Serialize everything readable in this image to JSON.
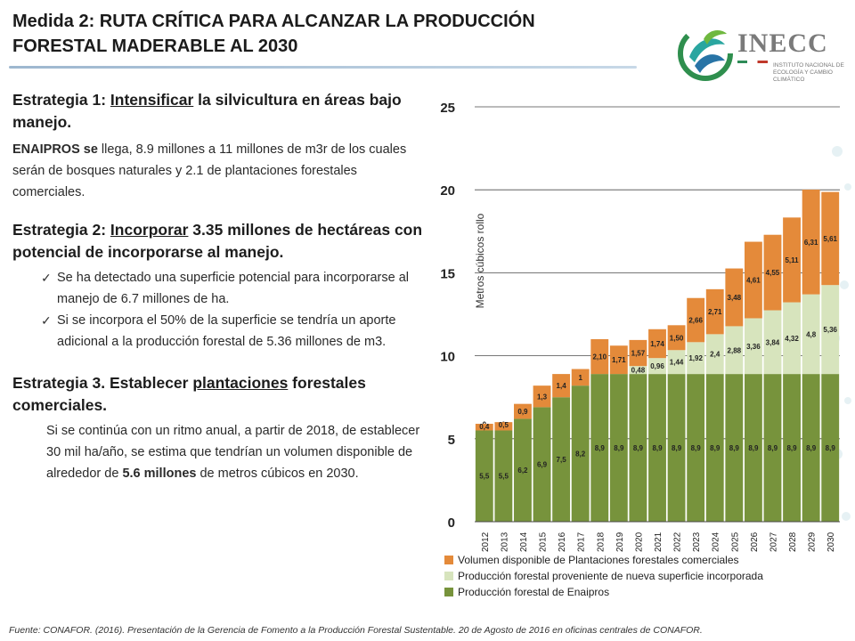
{
  "header": {
    "title_line1": "Medida 2: RUTA CRÍTICA PARA ALCANZAR LA PRODUCCIÓN",
    "title_line2": "FORESTAL MADERABLE AL 2030"
  },
  "logo": {
    "name": "INECC",
    "subtitle": "Instituto Nacional de Ecología y Cambio Climático",
    "colors": {
      "green": "#2f8f4e",
      "teal": "#2aa6a0",
      "blue": "#2874a6",
      "grey": "#7a7a7a"
    }
  },
  "strategies": {
    "s1_pre": "Estrategia 1: ",
    "s1_u": "Intensificar",
    "s1_post": " la silvicultura en áreas bajo manejo.",
    "s1_body_bold": "ENAIPROS se",
    "s1_body": " llega, 8.9 millones a 11 millones de m3r de los cuales serán de bosques naturales y 2.1 de plantaciones forestales comerciales.",
    "s2_pre": "Estrategia 2: ",
    "s2_u": "Incorporar",
    "s2_post": " 3.35 millones de hectáreas con potencial de incorporarse al manejo.",
    "s2_check1": "Se ha detectado una superficie potencial para incorporarse al manejo de 6.7 millones de ha.",
    "s2_check2": "Si se incorpora el 50% de la superficie se tendría un aporte adicional a la producción forestal de 5.36 millones de m3.",
    "s3_pre": "Estrategia 3. Establecer ",
    "s3_u": "plantaciones",
    "s3_post": " forestales comerciales.",
    "s3_body_pre": "Si se continúa con un ritmo anual, a partir de 2018, de establecer 30 mil ha/año, se estima que tendrían un volumen disponible de alrededor de ",
    "s3_body_bold": "5.6 millones",
    "s3_body_post": " de metros cúbicos en 2030."
  },
  "footer": {
    "source": "Fuente: CONAFOR. (2016). Presentación de la Gerencia de Fomento a la Producción Forestal Sustentable. 20 de Agosto de 2016 en oficinas centrales de CONAFOR."
  },
  "chart_data": {
    "type": "bar",
    "stacked": true,
    "ylabel": "Metros cúbicos rollo",
    "ylim": [
      0,
      25
    ],
    "yticks": [
      "0",
      "5",
      "10",
      "15",
      "20",
      "25"
    ],
    "grid": true,
    "legend_position": "bottom",
    "categories": [
      "2012",
      "2013",
      "2014",
      "2015",
      "2016",
      "2017",
      "2018",
      "2019",
      "2020",
      "2021",
      "2022",
      "2023",
      "2024",
      "2025",
      "2026",
      "2027",
      "2028",
      "2029",
      "2030"
    ],
    "series": [
      {
        "name": "Producción forestal de Enaipros",
        "color": "#77933c",
        "values": [
          5.5,
          5.5,
          6.2,
          6.9,
          7.5,
          8.2,
          8.9,
          8.9,
          8.9,
          8.9,
          8.9,
          8.9,
          8.9,
          8.9,
          8.9,
          8.9,
          8.9,
          8.9,
          8.9
        ],
        "labels": [
          "5,5",
          "5,5",
          "6,2",
          "6,9",
          "7,5",
          "8,2",
          "8,9",
          "8,9",
          "8,9",
          "8,9",
          "8,9",
          "8,9",
          "8,9",
          "8,9",
          "8,9",
          "8,9",
          "8,9",
          "8,9",
          "8,9"
        ]
      },
      {
        "name": "Producción forestal proveniente de nueva superficie incorporada",
        "color": "#d7e4bd",
        "values": [
          0,
          0,
          0,
          0,
          0,
          0,
          0,
          0,
          0.48,
          0.96,
          1.44,
          1.92,
          2.4,
          2.88,
          3.36,
          3.84,
          4.32,
          4.8,
          5.36
        ],
        "labels": [
          "0",
          "0",
          "0",
          "0",
          "0",
          "0",
          "0",
          "0",
          "0,48",
          "0,96",
          "1,44",
          "1,92",
          "2,4",
          "2,88",
          "3,36",
          "3,84",
          "4,32",
          "4,8",
          "5,36"
        ]
      },
      {
        "name": "Volumen disponible de Plantaciones forestales comerciales",
        "color": "#e48a3a",
        "values": [
          0.4,
          0.5,
          0.9,
          1.3,
          1.4,
          1,
          2.1,
          1.71,
          1.57,
          1.74,
          1.5,
          2.66,
          2.71,
          3.48,
          4.61,
          4.55,
          5.11,
          6.31,
          5.61
        ],
        "labels": [
          "0,4",
          "0,5",
          "0,9",
          "1,3",
          "1,4",
          "1",
          "2,10",
          "1,71",
          "1,57",
          "1,74",
          "1,50",
          "2,66",
          "2,71",
          "3,48",
          "4,61",
          "4,55",
          "5,11",
          "6,31",
          "5,61"
        ]
      }
    ],
    "legend_order": [
      2,
      1,
      0
    ]
  }
}
